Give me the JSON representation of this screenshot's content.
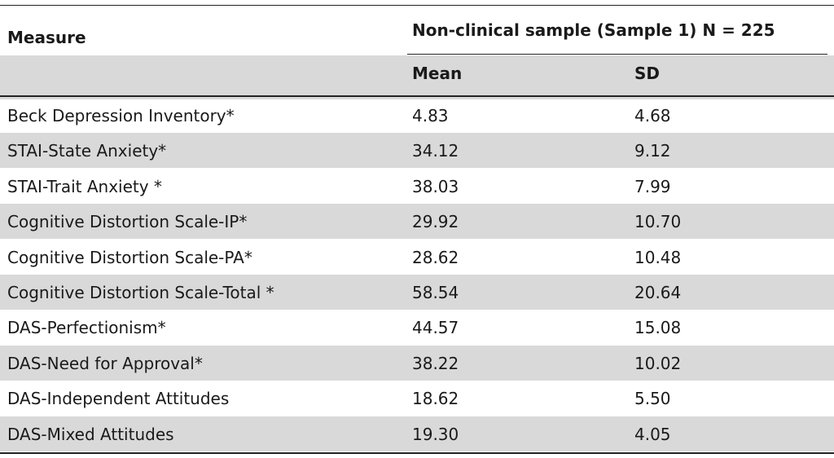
{
  "table": {
    "header": {
      "measure": "Measure",
      "group": "Non-clinical sample (Sample 1) N = 225",
      "mean": "Mean",
      "sd": "SD"
    },
    "rows": [
      {
        "measure": "Beck Depression Inventory*",
        "mean": "4.83",
        "sd": "4.68"
      },
      {
        "measure": "STAI-State Anxiety*",
        "mean": "34.12",
        "sd": "9.12"
      },
      {
        "measure": "STAI-Trait Anxiety *",
        "mean": "38.03",
        "sd": "7.99"
      },
      {
        "measure": "Cognitive Distortion Scale-IP*",
        "mean": "29.92",
        "sd": "10.70"
      },
      {
        "measure": "Cognitive Distortion Scale-PA*",
        "mean": "28.62",
        "sd": "10.48"
      },
      {
        "measure": "Cognitive Distortion Scale-Total *",
        "mean": "58.54",
        "sd": "20.64"
      },
      {
        "measure": "DAS-Perfectionism*",
        "mean": "44.57",
        "sd": "15.08"
      },
      {
        "measure": "DAS-Need for Approval*",
        "mean": "38.22",
        "sd": "10.02"
      },
      {
        "measure": "DAS-Independent Attitudes",
        "mean": "18.62",
        "sd": "5.50"
      },
      {
        "measure": "DAS-Mixed Attitudes",
        "mean": "19.30",
        "sd": "4.05"
      }
    ]
  }
}
